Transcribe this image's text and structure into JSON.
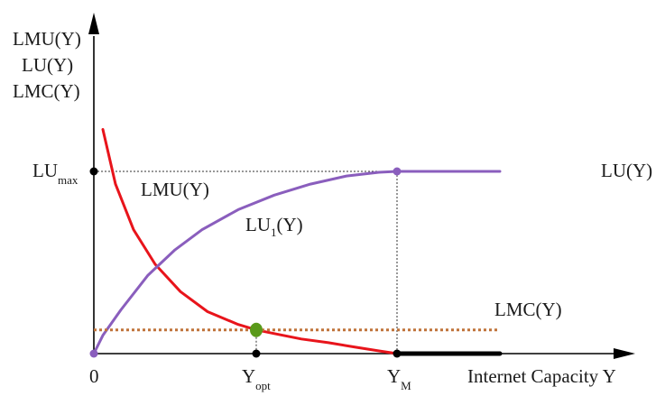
{
  "chart_data": {
    "type": "line",
    "y_axis_labels": [
      "LMU(Y)",
      "LU(Y)",
      "LMC(Y)"
    ],
    "xlabel": "Internet Capacity Y",
    "x_ticks": [
      {
        "main": "0",
        "sub": ""
      },
      {
        "main": "Y",
        "sub": "opt"
      },
      {
        "main": "Y",
        "sub": "M"
      }
    ],
    "y_ticks": [
      {
        "main": "LU",
        "sub": "max"
      }
    ],
    "curve_labels": {
      "lmu": "LMU(Y)",
      "lu1_main": "LU",
      "lu1_sub": "1",
      "lu1_tail": "(Y)",
      "lu": "LU(Y)",
      "lmc": "LMC(Y)"
    },
    "series": [
      {
        "name": "LMU(Y)",
        "color": "#e8141b",
        "style": "solid",
        "points": [
          [
            0.05,
            1.23
          ],
          [
            0.12,
            0.93
          ],
          [
            0.22,
            0.68
          ],
          [
            0.34,
            0.49
          ],
          [
            0.48,
            0.34
          ],
          [
            0.63,
            0.23
          ],
          [
            0.8,
            0.16
          ],
          [
            0.9,
            0.13
          ],
          [
            1.0,
            0.11
          ],
          [
            1.15,
            0.08
          ],
          [
            1.3,
            0.06
          ],
          [
            1.45,
            0.035
          ],
          [
            1.58,
            0.015
          ],
          [
            1.68,
            0.0
          ],
          [
            1.8,
            0.0
          ]
        ]
      },
      {
        "name": "LU(Y)",
        "color": "#8a5ebd",
        "style": "solid",
        "points": [
          [
            0.0,
            0.0
          ],
          [
            0.05,
            0.1
          ],
          [
            0.15,
            0.24
          ],
          [
            0.3,
            0.43
          ],
          [
            0.45,
            0.57
          ],
          [
            0.6,
            0.68
          ],
          [
            0.8,
            0.79
          ],
          [
            1.0,
            0.87
          ],
          [
            1.2,
            0.93
          ],
          [
            1.4,
            0.975
          ],
          [
            1.58,
            0.995
          ],
          [
            1.68,
            1.0
          ],
          [
            2.25,
            1.0
          ]
        ]
      },
      {
        "name": "LMC(Y)",
        "color": "#c0733a",
        "style": "dotted",
        "points": [
          [
            0.0,
            0.13
          ],
          [
            2.25,
            0.13
          ]
        ]
      },
      {
        "name": "",
        "color": "#000000",
        "style": "thick",
        "points": [
          [
            1.68,
            0.0
          ],
          [
            2.25,
            0.0
          ]
        ]
      }
    ],
    "key_points": [
      {
        "name": "origin",
        "x": 0.0,
        "y": 0.0,
        "color": "#8a5ebd"
      },
      {
        "name": "optimum",
        "x": 0.9,
        "y": 0.13,
        "color": "#5a9a1a"
      },
      {
        "name": "lu-max-point",
        "x": 1.68,
        "y": 1.0,
        "color": "#8a5ebd"
      },
      {
        "name": "lu-max-tick",
        "x": 0.0,
        "y": 1.0,
        "color": "#000000"
      },
      {
        "name": "y-opt-tick",
        "x": 0.9,
        "y": 0.0,
        "color": "#000000"
      },
      {
        "name": "y-m-tick",
        "x": 1.68,
        "y": 0.0,
        "color": "#000000"
      }
    ],
    "xlim": [
      0,
      2.3
    ],
    "ylim": [
      0,
      1.4
    ],
    "grid": false
  }
}
